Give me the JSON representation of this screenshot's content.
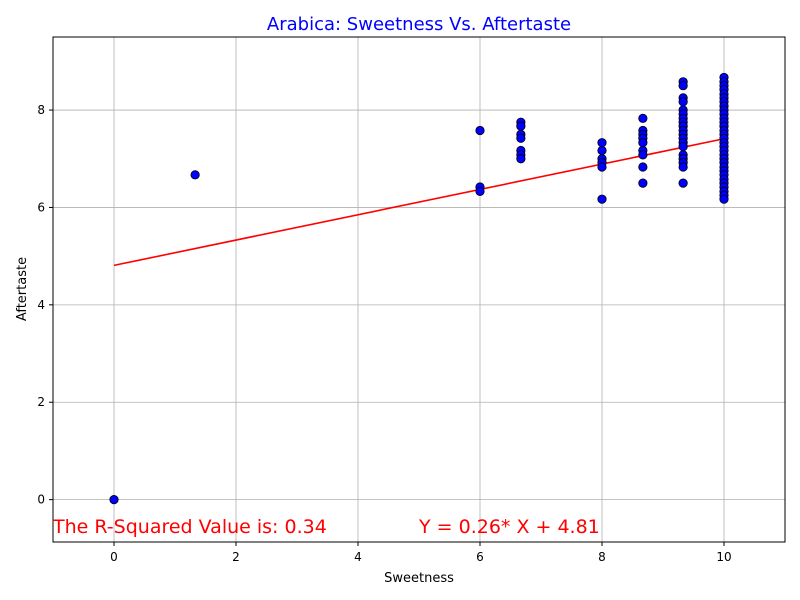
{
  "chart_data": {
    "type": "scatter",
    "title": "Arabica: Sweetness Vs. Aftertaste",
    "xlabel": "Sweetness",
    "ylabel": "Aftertaste",
    "xlim": [
      -1.0,
      11.0
    ],
    "ylim": [
      -0.87,
      9.5
    ],
    "xticks": [
      0,
      2,
      4,
      6,
      8,
      10
    ],
    "yticks": [
      0,
      2,
      4,
      6,
      8
    ],
    "grid": true,
    "colors": {
      "title": "#0000ff",
      "points": "#0000ff",
      "point_edge": "#000000",
      "fit": "#ff0000",
      "annotation": "#ff0000"
    },
    "points": [
      [
        0,
        0
      ],
      [
        1.33,
        6.67
      ],
      [
        6,
        7.58
      ],
      [
        6,
        6.42
      ],
      [
        6,
        6.33
      ],
      [
        6.67,
        7.75
      ],
      [
        6.67,
        7.67
      ],
      [
        6.67,
        7.5
      ],
      [
        6.67,
        7.42
      ],
      [
        6.67,
        7.17
      ],
      [
        6.67,
        7.08
      ],
      [
        6.67,
        7.0
      ],
      [
        8,
        7.33
      ],
      [
        8,
        7.17
      ],
      [
        8,
        7.0
      ],
      [
        8,
        6.92
      ],
      [
        8,
        6.83
      ],
      [
        8,
        6.17
      ],
      [
        8.67,
        7.83
      ],
      [
        8.67,
        7.58
      ],
      [
        8.67,
        7.5
      ],
      [
        8.67,
        7.42
      ],
      [
        8.67,
        7.33
      ],
      [
        8.67,
        7.17
      ],
      [
        8.67,
        7.08
      ],
      [
        8.67,
        6.83
      ],
      [
        8.67,
        6.5
      ],
      [
        9.33,
        8.58
      ],
      [
        9.33,
        8.5
      ],
      [
        9.33,
        8.25
      ],
      [
        9.33,
        8.17
      ],
      [
        9.33,
        8.0
      ],
      [
        9.33,
        7.92
      ],
      [
        9.33,
        7.83
      ],
      [
        9.33,
        7.75
      ],
      [
        9.33,
        7.67
      ],
      [
        9.33,
        7.58
      ],
      [
        9.33,
        7.5
      ],
      [
        9.33,
        7.42
      ],
      [
        9.33,
        7.33
      ],
      [
        9.33,
        7.25
      ],
      [
        9.33,
        7.08
      ],
      [
        9.33,
        7.0
      ],
      [
        9.33,
        6.92
      ],
      [
        9.33,
        6.83
      ],
      [
        9.33,
        6.5
      ],
      [
        10,
        8.67
      ],
      [
        10,
        8.58
      ],
      [
        10,
        8.5
      ],
      [
        10,
        8.42
      ],
      [
        10,
        8.33
      ],
      [
        10,
        8.25
      ],
      [
        10,
        8.17
      ],
      [
        10,
        8.08
      ],
      [
        10,
        8.0
      ],
      [
        10,
        7.92
      ],
      [
        10,
        7.83
      ],
      [
        10,
        7.75
      ],
      [
        10,
        7.67
      ],
      [
        10,
        7.58
      ],
      [
        10,
        7.5
      ],
      [
        10,
        7.42
      ],
      [
        10,
        7.33
      ],
      [
        10,
        7.25
      ],
      [
        10,
        7.17
      ],
      [
        10,
        7.08
      ],
      [
        10,
        7.0
      ],
      [
        10,
        6.92
      ],
      [
        10,
        6.83
      ],
      [
        10,
        6.75
      ],
      [
        10,
        6.67
      ],
      [
        10,
        6.58
      ],
      [
        10,
        6.5
      ],
      [
        10,
        6.42
      ],
      [
        10,
        6.33
      ],
      [
        10,
        6.25
      ],
      [
        10,
        6.17
      ]
    ],
    "fit_line": {
      "x": [
        0,
        10
      ],
      "slope": 0.26,
      "intercept": 4.81
    },
    "annotations": {
      "r_squared": "The R-Squared Value is: 0.34",
      "equation": "Y = 0.26* X + 4.81"
    }
  }
}
